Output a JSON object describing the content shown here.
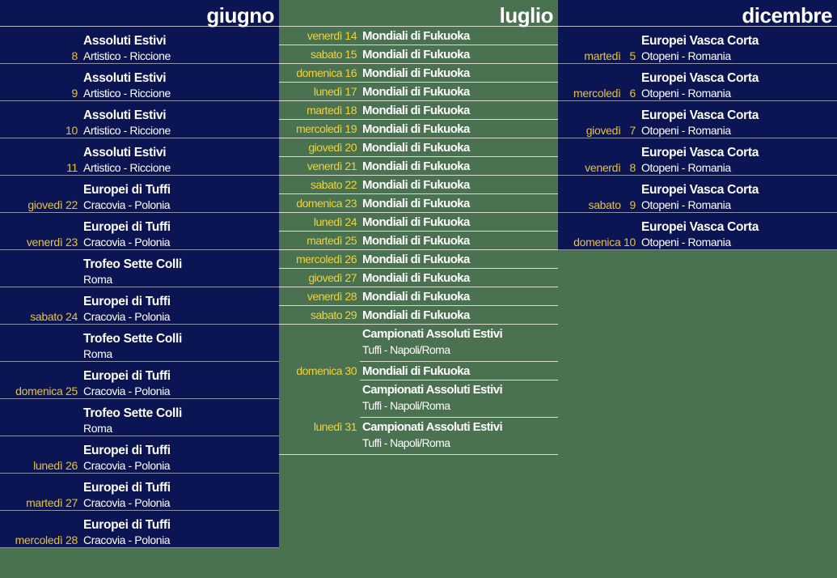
{
  "colors": {
    "navy_bg": "#0b1553",
    "green_bg": "#4a7250",
    "date_yellow": "#e8c23a",
    "text_white": "#ffffff"
  },
  "giugno": {
    "title": "giugno",
    "rows": [
      {
        "date": "8",
        "title": "Assoluti Estivi",
        "sub": "Artistico - Riccione"
      },
      {
        "date": "9",
        "title": "Assoluti Estivi",
        "sub": "Artistico - Riccione"
      },
      {
        "date": "10",
        "title": "Assoluti Estivi",
        "sub": "Artistico - Riccione"
      },
      {
        "date": "11",
        "title": "Assoluti Estivi",
        "sub": "Artistico - Riccione"
      },
      {
        "date": "giovedì 22",
        "title": "Europei di Tuffi",
        "sub": "Cracovia - Polonia"
      },
      {
        "date": "venerdì 23",
        "title": "Europei di Tuffi",
        "sub": "Cracovia - Polonia"
      },
      {
        "date": "",
        "title": "Trofeo Sette Colli",
        "sub": "Roma"
      },
      {
        "date": "sabato 24",
        "title": "Europei di Tuffi",
        "sub": "Cracovia - Polonia"
      },
      {
        "date": "",
        "title": "Trofeo Sette Colli",
        "sub": "Roma"
      },
      {
        "date": "domenica 25",
        "title": "Europei di Tuffi",
        "sub": "Cracovia - Polonia"
      },
      {
        "date": "",
        "title": "Trofeo Sette Colli",
        "sub": "Roma"
      },
      {
        "date": "lunedì 26",
        "title": "Europei di Tuffi",
        "sub": "Cracovia - Polonia"
      },
      {
        "date": "martedì 27",
        "title": "Europei di Tuffi",
        "sub": "Cracovia - Polonia"
      },
      {
        "date": "mercoledì 28",
        "title": "Europei di Tuffi",
        "sub": "Cracovia - Polonia"
      }
    ]
  },
  "luglio": {
    "title": "luglio",
    "rows": [
      {
        "date": "venerdì 14",
        "title": "Mondiali di Fukuoka"
      },
      {
        "date": "sabato 15",
        "title": "Mondiali di Fukuoka"
      },
      {
        "date": "domenica 16",
        "title": "Mondiali di Fukuoka"
      },
      {
        "date": "lunedì 17",
        "title": "Mondiali di Fukuoka"
      },
      {
        "date": "martedì 18",
        "title": "Mondiali di Fukuoka"
      },
      {
        "date": "mercoledì 19",
        "title": "Mondiali di Fukuoka"
      },
      {
        "date": "giovedì 20",
        "title": "Mondiali di Fukuoka"
      },
      {
        "date": "venerdì 21",
        "title": "Mondiali di Fukuoka"
      },
      {
        "date": "sabato 22",
        "title": "Mondiali di Fukuoka"
      },
      {
        "date": "domenica 23",
        "title": "Mondiali di Fukuoka"
      },
      {
        "date": "lunedì 24",
        "title": "Mondiali di Fukuoka"
      },
      {
        "date": "martedì 25",
        "title": "Mondiali di Fukuoka"
      },
      {
        "date": "mercoledì 26",
        "title": "Mondiali di Fukuoka"
      },
      {
        "date": "giovedì 27",
        "title": "Mondiali di Fukuoka"
      },
      {
        "date": "venerdì 28",
        "title": "Mondiali di Fukuoka"
      },
      {
        "date": "sabato 29",
        "title": "Mondiali di Fukuoka"
      }
    ],
    "domenica30": {
      "date": "domenica 30",
      "events": [
        {
          "title": "Campionati Assoluti Estivi",
          "sub": "Tuffi - Napoli/Roma"
        },
        {
          "title": "Mondiali di Fukuoka",
          "sub": ""
        },
        {
          "title": "Campionati Assoluti Estivi",
          "sub": "Tuffi - Napoli/Roma"
        }
      ]
    },
    "lunedi31": {
      "date": "lunedì 31",
      "events": [
        {
          "title": "Campionati Assoluti Estivi",
          "sub": "Tuffi - Napoli/Roma"
        }
      ]
    }
  },
  "dicembre": {
    "title": "dicembre",
    "rows": [
      {
        "date": "martedì   5",
        "title": "Europei Vasca Corta",
        "sub": "Otopeni - Romania"
      },
      {
        "date": "mercoledì   6",
        "title": "Europei Vasca Corta",
        "sub": "Otopeni - Romania"
      },
      {
        "date": "giovedì   7",
        "title": "Europei Vasca Corta",
        "sub": "Otopeni - Romania"
      },
      {
        "date": "venerdì   8",
        "title": "Europei Vasca Corta",
        "sub": "Otopeni - Romania"
      },
      {
        "date": "sabato   9",
        "title": "Europei Vasca Corta",
        "sub": "Otopeni - Romania"
      },
      {
        "date": "domenica 10",
        "title": "Europei Vasca Corta",
        "sub": "Otopeni - Romania"
      }
    ]
  }
}
